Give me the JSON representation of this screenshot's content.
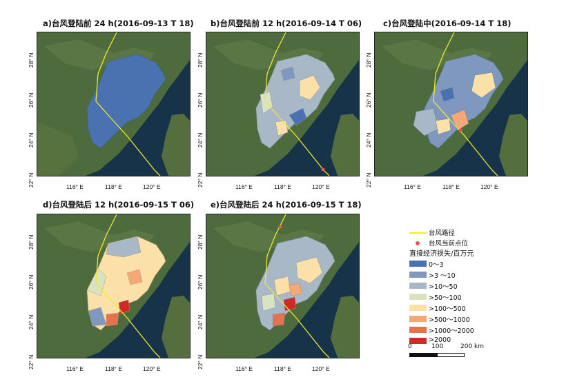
{
  "panels": [
    {
      "title": "a)台风登陆前 24 h(2016-09-13 T 18)"
    },
    {
      "title": "b)台风登陆前 12 h(2016-09-14 T 06)"
    },
    {
      "title": "c)台风登陆中(2016-09-14 T 18)"
    },
    {
      "title": "d)台风登陆后 12 h(2016-09-15 T 06)"
    },
    {
      "title": "e)台风登陆后 24 h(2016-09-15 T 18)"
    }
  ],
  "axes": {
    "lat_labels": [
      "28° N",
      "26° N",
      "24° N",
      "22° N"
    ],
    "lon_labels": [
      "116° E",
      "118° E",
      "120° E"
    ]
  },
  "legend": {
    "track_label": "台风路径",
    "position_label": "台风当前点位",
    "loss_title": "直接经济损失/百万元",
    "classes": [
      {
        "label": "0～3",
        "color": "#4a72b0"
      },
      {
        "label": ">3 ～10",
        "color": "#7f98c0"
      },
      {
        "label": ">10～50",
        "color": "#a9b8c6"
      },
      {
        "label": ">50～100",
        "color": "#d9e3c2"
      },
      {
        "label": ">100～500",
        "color": "#fbe0a8"
      },
      {
        "label": ">500～1000",
        "color": "#f3a876"
      },
      {
        "label": ">1000～2000",
        "color": "#e5714f"
      },
      {
        "label": ">2000",
        "color": "#cf2a23"
      }
    ],
    "track_color": "#f2ea2a",
    "marker_color": "#e8574c",
    "scale": {
      "ticks": [
        "0",
        "100",
        "200 km"
      ]
    }
  }
}
